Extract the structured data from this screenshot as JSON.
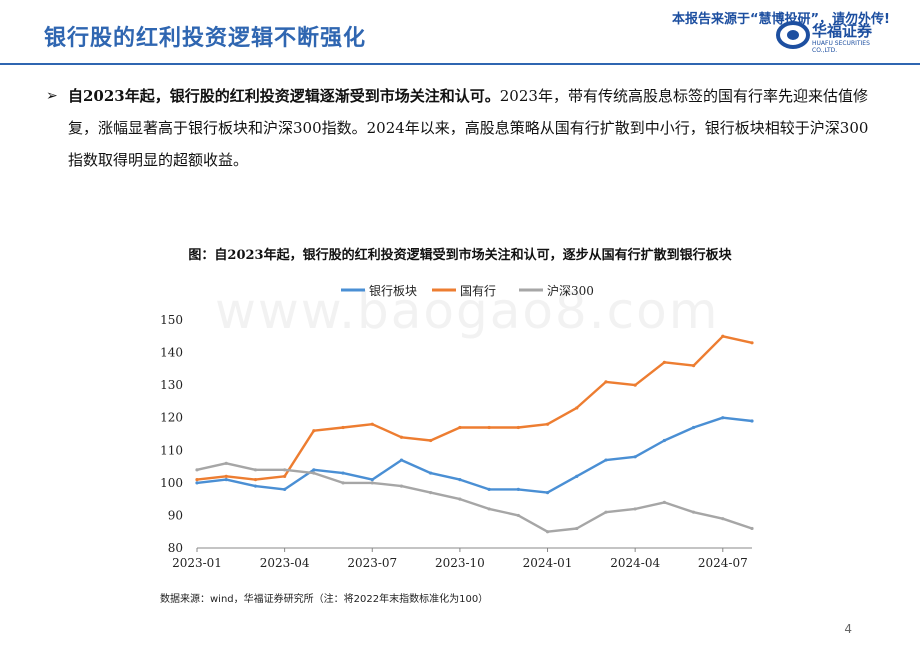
{
  "header": {
    "title": "银行股的红利投资逻辑不断强化",
    "source_banner": "本报告来源于“慧博投研”，请勿外传!",
    "logo_cn": "华福证券",
    "logo_en": "HUAFU SECURITIES CO.,LTD."
  },
  "bullet": {
    "mark": "➢",
    "bold_text": "自2023年起，银行股的红利投资逻辑逐渐受到市场关注和认可。",
    "text": "2023年，带有传统高股息标签的国有行率先迎来估值修复，涨幅显著高于银行板块和沪深300指数。2024年以来，高股息策略从国有行扩散到中小行，银行板块相较于沪深300指数取得明显的超额收益。"
  },
  "chart_title": "图：自2023年起，银行股的红利投资逻辑受到市场关注和认可，逐步从国有行扩散到银行板块",
  "footnote": "数据来源：wind，华福证券研究所（注：将2022年末指数标准化为100）",
  "page_number": "4",
  "watermark": "www.baogao8.com",
  "chart_data": {
    "type": "line",
    "x_ticks": [
      "2023-01",
      "2023-04",
      "2023-07",
      "2023-10",
      "2024-01",
      "2024-04",
      "2024-07"
    ],
    "x": [
      "2023-01",
      "2023-02",
      "2023-03",
      "2023-04",
      "2023-05",
      "2023-06",
      "2023-07",
      "2023-08",
      "2023-09",
      "2023-10",
      "2023-11",
      "2023-12",
      "2024-01",
      "2024-02",
      "2024-03",
      "2024-04",
      "2024-05",
      "2024-06",
      "2024-07",
      "2024-08"
    ],
    "ylim": [
      80,
      150
    ],
    "y_ticks": [
      80,
      90,
      100,
      110,
      120,
      130,
      140,
      150
    ],
    "grid": false,
    "legend_position": "top",
    "series": [
      {
        "name": "银行板块",
        "color": "#4a8fd4",
        "values": [
          100,
          101,
          99,
          98,
          104,
          103,
          101,
          107,
          103,
          101,
          98,
          98,
          97,
          102,
          107,
          108,
          113,
          117,
          120,
          119
        ]
      },
      {
        "name": "国有行",
        "color": "#ed7d31",
        "values": [
          101,
          102,
          101,
          102,
          116,
          117,
          118,
          114,
          113,
          117,
          117,
          117,
          118,
          123,
          131,
          130,
          137,
          136,
          145,
          143
        ]
      },
      {
        "name": "沪深300",
        "color": "#a6a6a6",
        "values": [
          104,
          106,
          104,
          104,
          103,
          100,
          100,
          99,
          97,
          95,
          92,
          90,
          85,
          86,
          91,
          92,
          94,
          91,
          89,
          86
        ]
      }
    ]
  }
}
